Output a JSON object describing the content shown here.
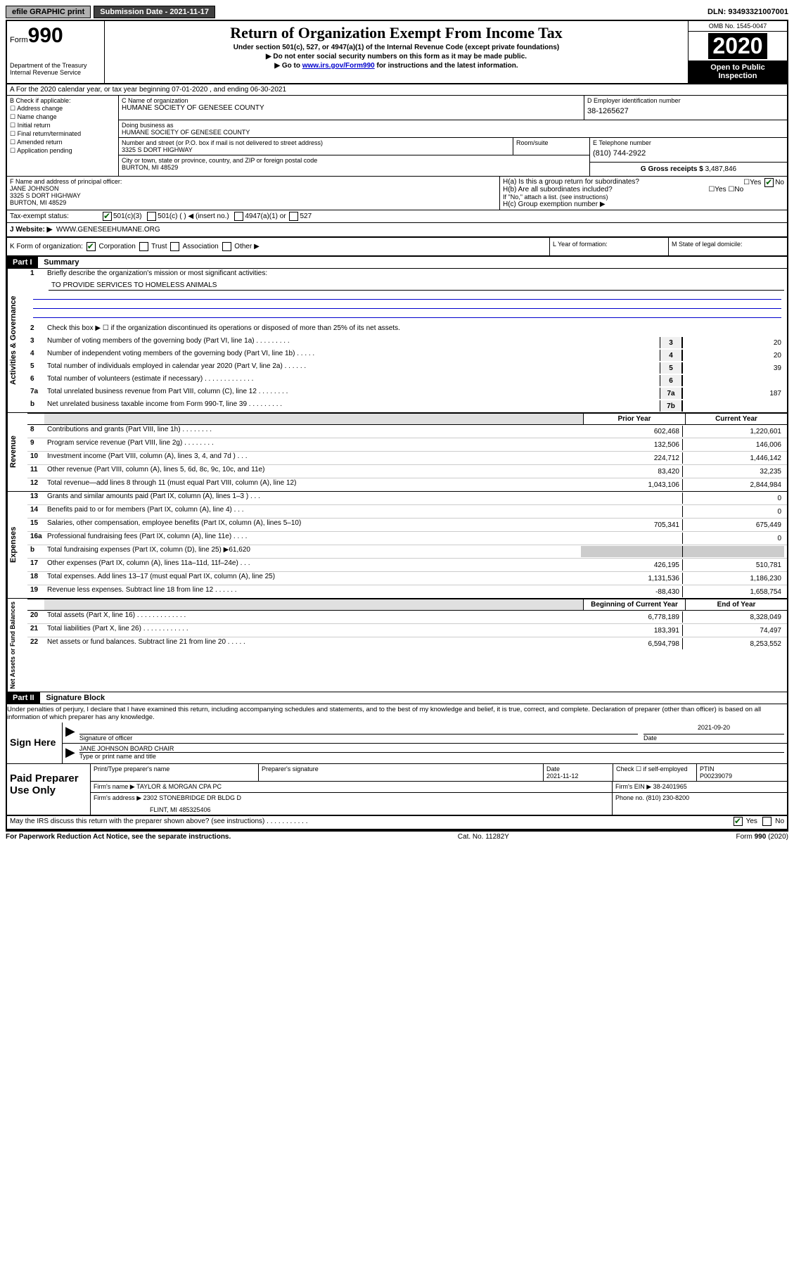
{
  "top": {
    "efile": "efile GRAPHIC print",
    "submission": "Submission Date - 2021-11-17",
    "dln": "DLN: 93493321007001"
  },
  "header": {
    "form_prefix": "Form",
    "form_num": "990",
    "dept": "Department of the Treasury",
    "irs": "Internal Revenue Service",
    "title": "Return of Organization Exempt From Income Tax",
    "sub1": "Under section 501(c), 527, or 4947(a)(1) of the Internal Revenue Code (except private foundations)",
    "sub2": "▶ Do not enter social security numbers on this form as it may be made public.",
    "sub3_pre": "▶ Go to ",
    "sub3_link": "www.irs.gov/Form990",
    "sub3_post": " for instructions and the latest information.",
    "omb": "OMB No. 1545-0047",
    "year": "2020",
    "open": "Open to Public Inspection"
  },
  "row_a": "A For the 2020 calendar year, or tax year beginning 07-01-2020     , and ending 06-30-2021",
  "block_b": {
    "label": "B Check if applicable:",
    "items": [
      "Address change",
      "Name change",
      "Initial return",
      "Final return/terminated",
      "Amended return",
      "Application pending"
    ]
  },
  "block_c": {
    "label": "C Name of organization",
    "name": "HUMANE SOCIETY OF GENESEE COUNTY",
    "dba_label": "Doing business as",
    "dba": "HUMANE SOCIETY OF GENESEE COUNTY",
    "street_label": "Number and street (or P.O. box if mail is not delivered to street address)",
    "street": "3325 S DORT HIGHWAY",
    "room_label": "Room/suite",
    "city_label": "City or town, state or province, country, and ZIP or foreign postal code",
    "city": "BURTON, MI  48529"
  },
  "block_d": {
    "label": "D Employer identification number",
    "ein": "38-1265627"
  },
  "block_e": {
    "label": "E Telephone number",
    "phone": "(810) 744-2922"
  },
  "block_g": {
    "label": "G Gross receipts $",
    "val": "3,487,846"
  },
  "block_f": {
    "label": "F Name and address of principal officer:",
    "name": "JANE JOHNSON",
    "addr1": "3325 S DORT HIGHWAY",
    "addr2": "BURTON, MI  48529"
  },
  "block_h": {
    "ha": "H(a)  Is this a group return for subordinates?",
    "hb": "H(b)  Are all subordinates included?",
    "hb_note": "If \"No,\" attach a list. (see instructions)",
    "hc": "H(c)  Group exemption number ▶"
  },
  "tax_status": {
    "label": "Tax-exempt status:",
    "opt1": "501(c)(3)",
    "opt2": "501(c) (   ) ◀ (insert no.)",
    "opt3": "4947(a)(1) or",
    "opt4": "527"
  },
  "website": {
    "label": "J   Website: ▶",
    "val": "WWW.GENESEEHUMANE.ORG"
  },
  "k": "K Form of organization:",
  "k_opts": [
    "Corporation",
    "Trust",
    "Association",
    "Other ▶"
  ],
  "l": "L Year of formation:",
  "m": "M State of legal domicile:",
  "part1": {
    "header": "Part I",
    "title": "Summary"
  },
  "gov": {
    "label": "Activities & Governance",
    "l1": "Briefly describe the organization's mission or most significant activities:",
    "l1v": "TO PROVIDE SERVICES TO HOMELESS ANIMALS",
    "l2": "Check this box ▶ ☐  if the organization discontinued its operations or disposed of more than 25% of its net assets.",
    "l3": "Number of voting members of the governing body (Part VI, line 1a)  .    .    .    .    .    .    .    .    .",
    "l3v": "20",
    "l4": "Number of independent voting members of the governing body (Part VI, line 1b)  .    .    .    .    .",
    "l4v": "20",
    "l5": "Total number of individuals employed in calendar year 2020 (Part V, line 2a)   .    .    .    .    .    .",
    "l5v": "39",
    "l6": "Total number of volunteers (estimate if necessary)    .    .    .    .    .    .    .    .    .    .    .    .    .",
    "l6v": "",
    "l7a": "Total unrelated business revenue from Part VIII, column (C), line 12   .    .    .    .    .    .    .    .",
    "l7av": "187",
    "l7b": "Net unrelated business taxable income from Form 990-T, line 39    .    .    .    .    .    .    .    .    .",
    "l7bv": ""
  },
  "cols": {
    "prior": "Prior Year",
    "current": "Current Year",
    "begin": "Beginning of Current Year",
    "end": "End of Year"
  },
  "rev": {
    "label": "Revenue",
    "rows": [
      {
        "n": "8",
        "t": "Contributions and grants (Part VIII, line 1h)    .    .    .    .    .    .    .    .",
        "p": "602,468",
        "c": "1,220,601"
      },
      {
        "n": "9",
        "t": "Program service revenue (Part VIII, line 2g)    .    .    .    .    .    .    .    .",
        "p": "132,506",
        "c": "146,006"
      },
      {
        "n": "10",
        "t": "Investment income (Part VIII, column (A), lines 3, 4, and 7d )   .    .    .",
        "p": "224,712",
        "c": "1,446,142"
      },
      {
        "n": "11",
        "t": "Other revenue (Part VIII, column (A), lines 5, 6d, 8c, 9c, 10c, and 11e)",
        "p": "83,420",
        "c": "32,235"
      },
      {
        "n": "12",
        "t": "Total revenue—add lines 8 through 11 (must equal Part VIII, column (A), line 12)",
        "p": "1,043,106",
        "c": "2,844,984"
      }
    ]
  },
  "exp": {
    "label": "Expenses",
    "rows": [
      {
        "n": "13",
        "t": "Grants and similar amounts paid (Part IX, column (A), lines 1–3 )   .    .    .",
        "p": "",
        "c": "0"
      },
      {
        "n": "14",
        "t": "Benefits paid to or for members (Part IX, column (A), line 4)   .    .    .",
        "p": "",
        "c": "0"
      },
      {
        "n": "15",
        "t": "Salaries, other compensation, employee benefits (Part IX, column (A), lines 5–10)",
        "p": "705,341",
        "c": "675,449"
      },
      {
        "n": "16a",
        "t": "Professional fundraising fees (Part IX, column (A), line 11e)    .    .    .    .",
        "p": "",
        "c": "0"
      },
      {
        "n": "b",
        "t": "Total fundraising expenses (Part IX, column (D), line 25) ▶61,620",
        "p": "",
        "c": ""
      },
      {
        "n": "17",
        "t": "Other expenses (Part IX, column (A), lines 11a–11d, 11f–24e)   .    .    .",
        "p": "426,195",
        "c": "510,781"
      },
      {
        "n": "18",
        "t": "Total expenses. Add lines 13–17 (must equal Part IX, column (A), line 25)",
        "p": "1,131,536",
        "c": "1,186,230"
      },
      {
        "n": "19",
        "t": "Revenue less expenses. Subtract line 18 from line 12   .    .    .    .    .    .",
        "p": "-88,430",
        "c": "1,658,754"
      }
    ]
  },
  "net": {
    "label": "Net Assets or Fund Balances",
    "rows": [
      {
        "n": "20",
        "t": "Total assets (Part X, line 16)    .    .    .    .    .    .    .    .    .    .    .    .    .",
        "p": "6,778,189",
        "c": "8,328,049"
      },
      {
        "n": "21",
        "t": "Total liabilities (Part X, line 26)   .    .    .    .    .    .    .    .    .    .    .    .",
        "p": "183,391",
        "c": "74,497"
      },
      {
        "n": "22",
        "t": "Net assets or fund balances. Subtract line 21 from line 20  .    .    .    .    .",
        "p": "6,594,798",
        "c": "8,253,552"
      }
    ]
  },
  "part2": {
    "header": "Part II",
    "title": "Signature Block"
  },
  "penalties": "Under penalties of perjury, I declare that I have examined this return, including accompanying schedules and statements, and to the best of my knowledge and belief, it is true, correct, and complete. Declaration of preparer (other than officer) is based on all information of which preparer has any knowledge.",
  "sign": {
    "left": "Sign Here",
    "sig_label": "Signature of officer",
    "date_label": "Date",
    "date": "2021-09-20",
    "name": "JANE JOHNSON BOARD CHAIR",
    "name_label": "Type or print name and title"
  },
  "prep": {
    "left": "Paid Preparer Use Only",
    "h1": "Print/Type preparer's name",
    "h2": "Preparer's signature",
    "h3": "Date",
    "h3v": "2021-11-12",
    "h4": "Check ☐ if self-employed",
    "h5": "PTIN",
    "h5v": "P00239079",
    "firm_label": "Firm's name    ▶",
    "firm": "TAYLOR & MORGAN CPA PC",
    "ein_label": "Firm's EIN ▶",
    "ein": "38-2401965",
    "addr_label": "Firm's address ▶",
    "addr1": "2302 STONEBRIDGE DR BLDG D",
    "addr2": "FLINT, MI  485325406",
    "phone_label": "Phone no.",
    "phone": "(810) 230-8200"
  },
  "discuss": "May the IRS discuss this return with the preparer shown above? (see instructions)    .    .    .    .    .    .    .    .    .    .    .",
  "footer": {
    "left": "For Paperwork Reduction Act Notice, see the separate instructions.",
    "mid": "Cat. No. 11282Y",
    "right": "Form 990 (2020)"
  }
}
